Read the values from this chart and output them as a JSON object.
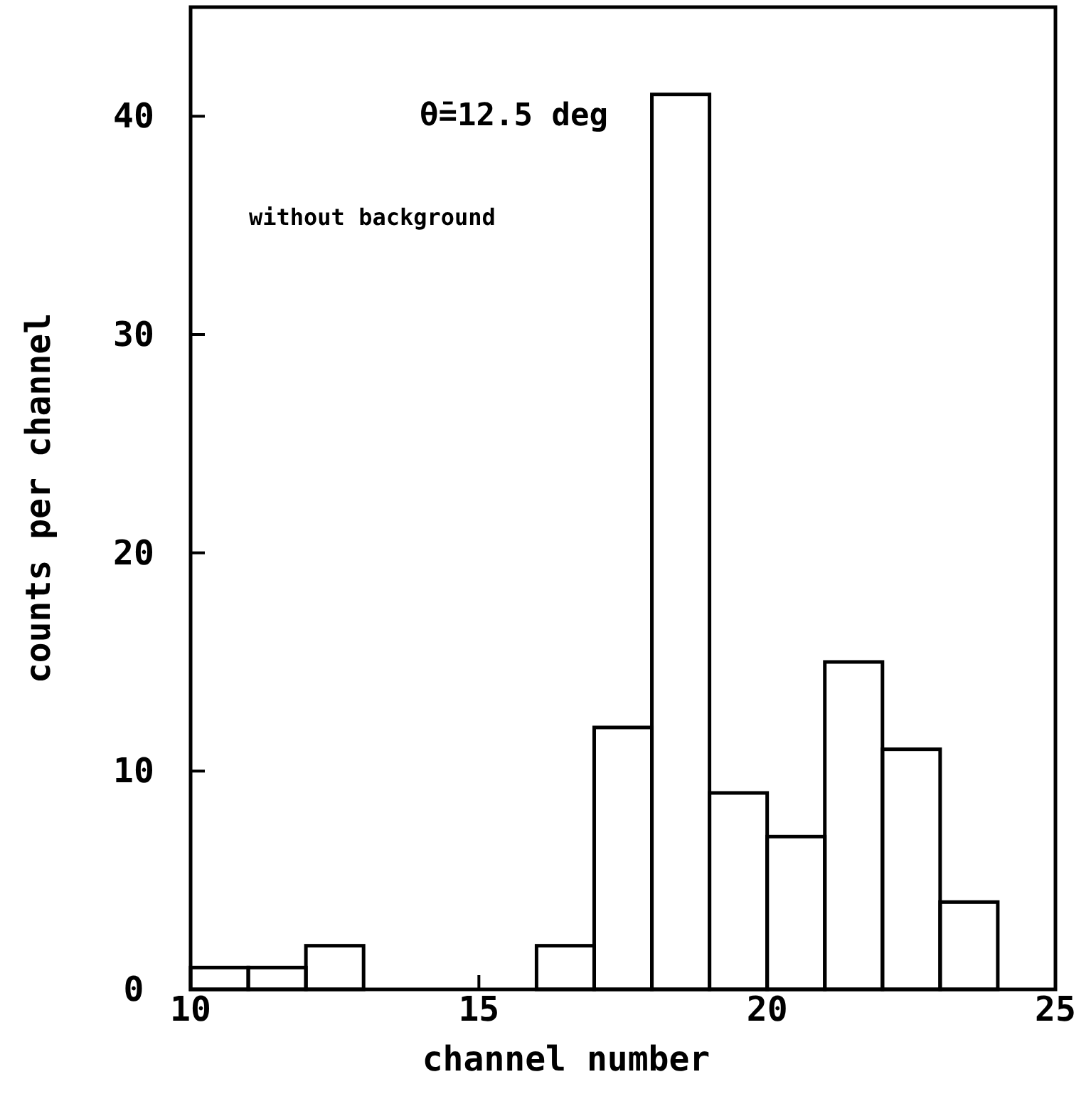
{
  "chart_data": {
    "type": "histogram",
    "xlabel": "channel number",
    "ylabel": "counts per channel",
    "annotations": [
      "θ̄=12.5 deg",
      "without background"
    ],
    "bins": [
      10,
      11,
      12,
      13,
      14,
      15,
      16,
      17,
      18,
      19,
      20,
      21,
      22,
      23,
      24,
      25
    ],
    "values": [
      1,
      1,
      2,
      0,
      0,
      0,
      2,
      12,
      41,
      9,
      7,
      15,
      11,
      4,
      0
    ],
    "color": "#000000",
    "xlim": [
      10,
      25
    ],
    "xticks": [
      10,
      15,
      20,
      25
    ],
    "ylim": [
      0,
      45
    ],
    "yticks": [
      0,
      10,
      20,
      30,
      40
    ],
    "grid": false
  }
}
